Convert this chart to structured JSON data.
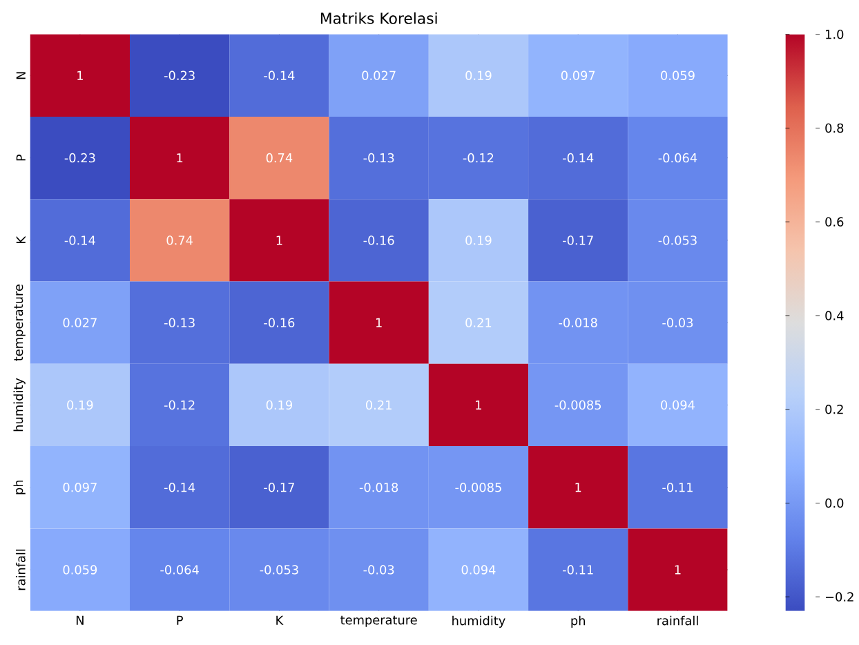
{
  "chart_data": {
    "type": "heatmap",
    "title": "Matriks Korelasi",
    "categories": [
      "N",
      "P",
      "K",
      "temperature",
      "humidity",
      "ph",
      "rainfall"
    ],
    "y_categories": [
      "N",
      "P",
      "K",
      "temperature",
      "humidity",
      "ph",
      "rainfall"
    ],
    "cells": [
      [
        1,
        -0.23,
        -0.14,
        0.027,
        0.19,
        0.097,
        0.059
      ],
      [
        -0.23,
        1,
        0.74,
        -0.13,
        -0.12,
        -0.14,
        -0.064
      ],
      [
        -0.14,
        0.74,
        1,
        -0.16,
        0.19,
        -0.17,
        -0.053
      ],
      [
        0.027,
        -0.13,
        -0.16,
        1,
        0.21,
        -0.018,
        -0.03
      ],
      [
        0.19,
        -0.12,
        0.19,
        0.21,
        1,
        -0.0085,
        0.094
      ],
      [
        0.097,
        -0.14,
        -0.17,
        -0.018,
        -0.0085,
        1,
        -0.11
      ],
      [
        0.059,
        -0.064,
        -0.053,
        -0.03,
        0.094,
        -0.11,
        1
      ]
    ],
    "clim": [
      -0.23,
      1.0
    ],
    "cticks": [
      {
        "value": -0.2,
        "label": "−0.2"
      },
      {
        "value": 0.0,
        "label": "0.0"
      },
      {
        "value": 0.2,
        "label": "0.2"
      },
      {
        "value": 0.4,
        "label": "0.4"
      },
      {
        "value": 0.6,
        "label": "0.6"
      },
      {
        "value": 0.8,
        "label": "0.8"
      },
      {
        "value": 1.0,
        "label": "1.0"
      }
    ],
    "data_labels": true
  }
}
